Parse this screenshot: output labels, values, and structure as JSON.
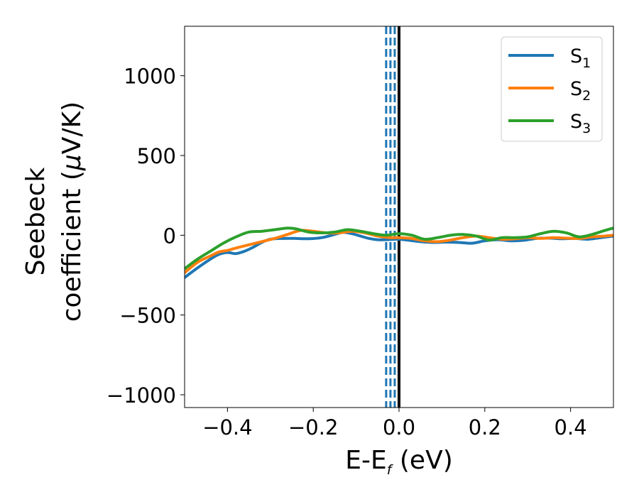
{
  "chart_data": {
    "type": "line",
    "xlabel": {
      "main": "E-E",
      "sub": "f",
      "rest": " (eV)"
    },
    "ylabel": {
      "line1": "Seebeck",
      "line2_text": "coefficient  (",
      "line2_mu": "μ",
      "line2_unit": "V/K)"
    },
    "xlim": [
      -0.5,
      0.5
    ],
    "ylim": [
      -1080,
      1310
    ],
    "xticks": [
      -0.4,
      -0.2,
      0.0,
      0.2,
      0.4
    ],
    "xtick_labels": [
      "−0.4",
      "−0.2",
      "0.0",
      "0.2",
      "0.4"
    ],
    "yticks": [
      -1000,
      -500,
      0,
      500,
      1000
    ],
    "ytick_labels": [
      "−1000",
      "−500",
      "0",
      "500",
      "1000"
    ],
    "grid": false,
    "legend_position": "top-right",
    "vertical_lines": [
      {
        "x": -0.03,
        "style": "dashed",
        "color": "#1f77b4"
      },
      {
        "x": -0.02,
        "style": "dashed",
        "color": "#1f77b4"
      },
      {
        "x": -0.01,
        "style": "dashed",
        "color": "#1f77b4"
      },
      {
        "x": 0.0,
        "style": "solid",
        "color": "#000000"
      }
    ],
    "series": [
      {
        "name": "S",
        "subscript": "1",
        "color": "#1f77b4",
        "x": [
          -0.5,
          -0.47,
          -0.44,
          -0.42,
          -0.4,
          -0.38,
          -0.36,
          -0.34,
          -0.32,
          -0.3,
          -0.27,
          -0.24,
          -0.21,
          -0.18,
          -0.15,
          -0.13,
          -0.11,
          -0.09,
          -0.07,
          -0.05,
          -0.03,
          -0.01,
          0.0,
          0.02,
          0.05,
          0.08,
          0.11,
          0.14,
          0.17,
          0.2,
          0.23,
          0.26,
          0.29,
          0.32,
          0.35,
          0.38,
          0.41,
          0.44,
          0.47,
          0.5
        ],
        "y": [
          -265,
          -205,
          -150,
          -120,
          -108,
          -115,
          -100,
          -75,
          -45,
          -25,
          -20,
          -20,
          -22,
          -15,
          5,
          18,
          10,
          -5,
          -20,
          -28,
          -28,
          -25,
          -25,
          -30,
          -40,
          -45,
          -43,
          -45,
          -50,
          -35,
          -28,
          -35,
          -32,
          -20,
          -18,
          -22,
          -20,
          -25,
          -15,
          -5
        ]
      },
      {
        "name": "S",
        "subscript": "2",
        "color": "#ff7f0e",
        "x": [
          -0.5,
          -0.47,
          -0.44,
          -0.42,
          -0.4,
          -0.38,
          -0.35,
          -0.32,
          -0.29,
          -0.26,
          -0.23,
          -0.2,
          -0.17,
          -0.14,
          -0.11,
          -0.08,
          -0.05,
          -0.02,
          0.0,
          0.03,
          0.06,
          0.09,
          0.12,
          0.15,
          0.18,
          0.21,
          0.24,
          0.27,
          0.3,
          0.33,
          0.36,
          0.39,
          0.42,
          0.45,
          0.48,
          0.5
        ],
        "y": [
          -235,
          -170,
          -130,
          -105,
          -95,
          -80,
          -60,
          -40,
          -20,
          5,
          30,
          25,
          15,
          15,
          25,
          15,
          -5,
          -15,
          -15,
          -20,
          -35,
          -40,
          -30,
          -15,
          -5,
          -15,
          -25,
          -22,
          -15,
          -20,
          -15,
          -18,
          -20,
          -10,
          -5,
          0
        ]
      },
      {
        "name": "S",
        "subscript": "3",
        "color": "#2ca02c",
        "x": [
          -0.5,
          -0.47,
          -0.44,
          -0.41,
          -0.38,
          -0.35,
          -0.32,
          -0.29,
          -0.26,
          -0.24,
          -0.21,
          -0.18,
          -0.15,
          -0.12,
          -0.09,
          -0.06,
          -0.03,
          0.0,
          0.03,
          0.06,
          0.09,
          0.12,
          0.15,
          0.18,
          0.21,
          0.24,
          0.27,
          0.3,
          0.33,
          0.36,
          0.39,
          0.42,
          0.45,
          0.48,
          0.5
        ],
        "y": [
          -210,
          -150,
          -100,
          -50,
          -10,
          20,
          25,
          35,
          45,
          40,
          20,
          15,
          20,
          35,
          25,
          10,
          0,
          10,
          0,
          -25,
          -15,
          0,
          5,
          -5,
          -30,
          -15,
          -15,
          -10,
          10,
          25,
          15,
          -10,
          5,
          30,
          45
        ]
      }
    ]
  }
}
